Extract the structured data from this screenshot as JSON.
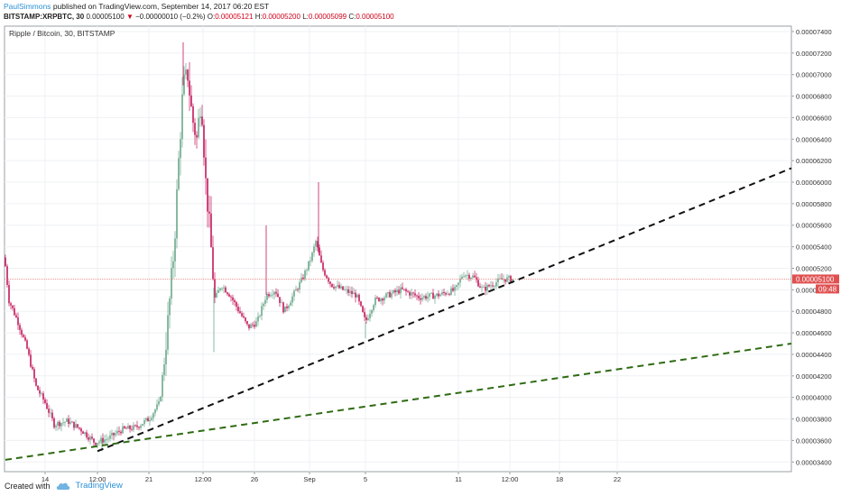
{
  "header": {
    "author": "PaulSimmons",
    "published": "published on TradingView.com, September 14, 2017 06:20 EST",
    "symbol": "BITSTAMP:XRPBTC, 30",
    "last": "0.00005100",
    "change_arrow": "▼",
    "change": "−0.00000010 (−0.2%)",
    "o_label": "O:",
    "o": "0.00005121",
    "h_label": "H:",
    "h": "0.00005200",
    "l_label": "L:",
    "l": "0.00005099",
    "c_label": "C:",
    "c": "0.00005100"
  },
  "chart_title": "Ripple / Bitcoin, 30, BITSTAMP",
  "price_tag": "0.00005100",
  "time_tag": "09:48",
  "footer": {
    "created_with": "Created with",
    "brand": "TradingView"
  },
  "colors": {
    "up": "#6aa88a",
    "down": "#c2185b",
    "trend_black": "#111111",
    "trend_green": "#2e6b12",
    "price_line": "#e57373",
    "tag": "#e05050"
  },
  "chart_data": {
    "type": "candlestick",
    "x_ticks": [
      "14",
      "12:00",
      "21",
      "12:00",
      "26",
      "Sep",
      "5",
      "11",
      "12:00",
      "18",
      "22"
    ],
    "y_ticks": [
      "0.00007400",
      "0.00007200",
      "0.00007000",
      "0.00006800",
      "0.00006600",
      "0.00006400",
      "0.00006200",
      "0.00006000",
      "0.00005800",
      "0.00005600",
      "0.00005400",
      "0.00005200",
      "0.00005000",
      "0.00004800",
      "0.00004600",
      "0.00004400",
      "0.00004200",
      "0.00004000",
      "0.00003800",
      "0.00003600",
      "0.00003400"
    ],
    "ylim": [
      3.31e-05,
      7.45e-05
    ],
    "current_price": 5.1e-05,
    "price_path": [
      [
        0,
        5.3e-05
      ],
      [
        5,
        4.9e-05
      ],
      [
        15,
        4.7e-05
      ],
      [
        25,
        4.45e-05
      ],
      [
        35,
        4.1e-05
      ],
      [
        45,
        3.95e-05
      ],
      [
        55,
        3.75e-05
      ],
      [
        70,
        3.78e-05
      ],
      [
        85,
        3.7e-05
      ],
      [
        100,
        3.58e-05
      ],
      [
        115,
        3.62e-05
      ],
      [
        130,
        3.7e-05
      ],
      [
        145,
        3.72e-05
      ],
      [
        160,
        3.8e-05
      ],
      [
        172,
        3.95e-05
      ],
      [
        180,
        4.6e-05
      ],
      [
        188,
        5.4e-05
      ],
      [
        193,
        6.2e-05
      ],
      [
        198,
        6.9e-05
      ],
      [
        203,
        7e-05
      ],
      [
        208,
        6.6e-05
      ],
      [
        213,
        6.4e-05
      ],
      [
        218,
        6.8e-05
      ],
      [
        223,
        6e-05
      ],
      [
        228,
        5.5e-05
      ],
      [
        233,
        4.9e-05
      ],
      [
        240,
        5.05e-05
      ],
      [
        250,
        4.95e-05
      ],
      [
        260,
        4.8e-05
      ],
      [
        270,
        4.65e-05
      ],
      [
        280,
        4.7e-05
      ],
      [
        290,
        4.95e-05
      ],
      [
        300,
        5e-05
      ],
      [
        310,
        4.8e-05
      ],
      [
        320,
        4.95e-05
      ],
      [
        330,
        5.1e-05
      ],
      [
        340,
        5.3e-05
      ],
      [
        345,
        5.45e-05
      ],
      [
        352,
        5.2e-05
      ],
      [
        362,
        5.05e-05
      ],
      [
        375,
        5e-05
      ],
      [
        390,
        4.95e-05
      ],
      [
        400,
        4.7e-05
      ],
      [
        410,
        4.9e-05
      ],
      [
        425,
        4.95e-05
      ],
      [
        440,
        5e-05
      ],
      [
        460,
        4.93e-05
      ],
      [
        480,
        4.95e-05
      ],
      [
        500,
        5e-05
      ],
      [
        508,
        5.15e-05
      ],
      [
        520,
        5.12e-05
      ],
      [
        530,
        5e-05
      ],
      [
        540,
        5.05e-05
      ],
      [
        552,
        5.1e-05
      ],
      [
        562,
        5.1e-05
      ]
    ],
    "high_spikes": [
      [
        198,
        7.3e-05
      ],
      [
        348,
        6e-05
      ],
      [
        290,
        5.6e-05
      ]
    ],
    "low_spikes": [
      [
        232,
        4.42e-05
      ],
      [
        400,
        4.55e-05
      ],
      [
        108,
        3.5e-05
      ]
    ],
    "trendlines": [
      {
        "style": "dashed",
        "color": "#111111",
        "from": [
          108,
          3.5e-05
        ],
        "to": [
          877,
          6.13e-05
        ]
      },
      {
        "style": "dashed",
        "color": "#2e6b12",
        "from": [
          6,
          3.42e-05
        ],
        "to": [
          877,
          4.5e-05
        ]
      }
    ]
  }
}
